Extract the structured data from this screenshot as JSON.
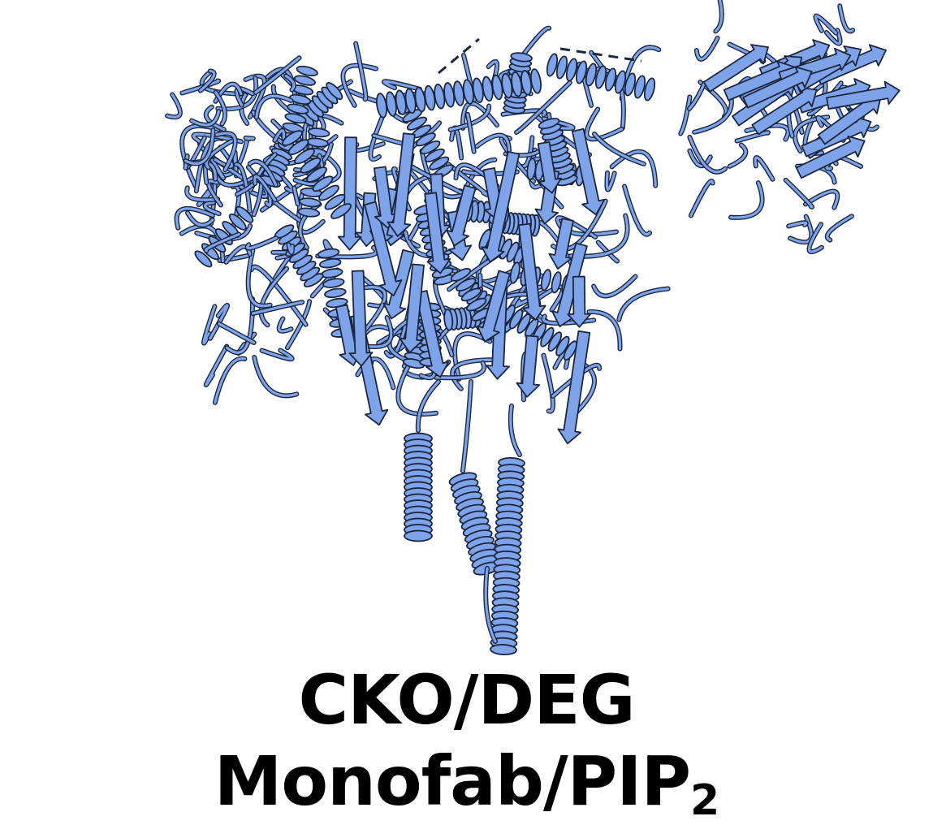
{
  "caption": {
    "line1": "CKO/DEG",
    "line2_main": "Monofab/PIP",
    "line2_subscript": "2"
  },
  "colors": {
    "ribbon_fill": "#7ea3e8",
    "ribbon_outline": "#1b2740",
    "text": "#000000",
    "background": "#ffffff"
  }
}
